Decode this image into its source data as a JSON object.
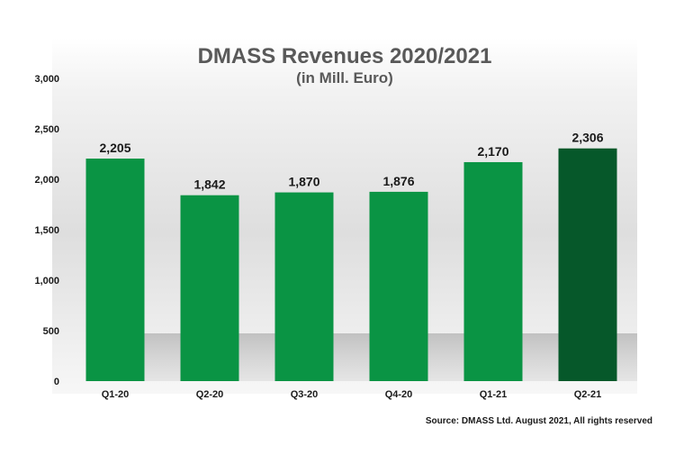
{
  "chart_data": {
    "type": "bar",
    "title": "DMASS Revenues 2020/2021",
    "subtitle": "(in Mill. Euro)",
    "categories": [
      "Q1-20",
      "Q2-20",
      "Q3-20",
      "Q4-20",
      "Q1-21",
      "Q2-21"
    ],
    "values": [
      2205,
      1842,
      1870,
      1876,
      2170,
      2306
    ],
    "value_labels": [
      "2,205",
      "1,842",
      "1,870",
      "1,876",
      "2,170",
      "2,306"
    ],
    "ylim": [
      0,
      3000
    ],
    "yticks": [
      "0",
      "500",
      "1,000",
      "1,500",
      "2,000",
      "2,500",
      "3,000"
    ],
    "xlabel": "",
    "ylabel": "",
    "grid": false,
    "colors": {
      "bar": "#0a9444",
      "highlight_bar": "#06582a",
      "title": "#595959"
    },
    "highlight_index": 5,
    "source": "Source: DMASS Ltd. August 2021, All rights reserved"
  }
}
